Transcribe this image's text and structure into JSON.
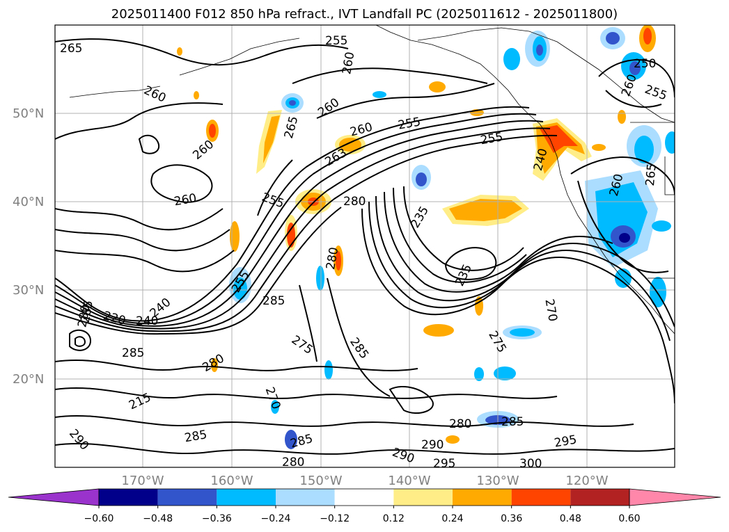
{
  "title": "2025011400 F012 850 hPa refract., IVT Landfall PC (2025011612 - 2025011800)",
  "map": {
    "lon_ticks": [
      "170°W",
      "160°W",
      "150°W",
      "140°W",
      "130°W",
      "120°W"
    ],
    "lat_ticks": [
      "50°N",
      "40°N",
      "30°N",
      "20°N"
    ],
    "contour_labels": [
      "265",
      "255",
      "260",
      "260",
      "260",
      "265",
      "260",
      "255",
      "255",
      "260",
      "250",
      "255",
      "263",
      "260",
      "240",
      "260",
      "265",
      "260",
      "255",
      "280",
      "235",
      "235",
      "280",
      "240",
      "285",
      "220",
      "240",
      "255",
      "280",
      "285",
      "275",
      "270",
      "275",
      "285",
      "285",
      "280",
      "270",
      "215",
      "290",
      "285",
      "285",
      "280",
      "280",
      "290",
      "290",
      "295",
      "300",
      "295",
      "285"
    ]
  },
  "colorbar": {
    "ticks": [
      "−0.60",
      "−0.48",
      "−0.36",
      "−0.24",
      "−0.12",
      "0.12",
      "0.24",
      "0.36",
      "0.48",
      "0.60"
    ],
    "colors": [
      "#9933cc",
      "#00008b",
      "#3355cc",
      "#00bbff",
      "#aaddff",
      "#ffffff",
      "#ffee88",
      "#ffaa00",
      "#ff4400",
      "#b22222",
      "#ff88aa"
    ]
  }
}
